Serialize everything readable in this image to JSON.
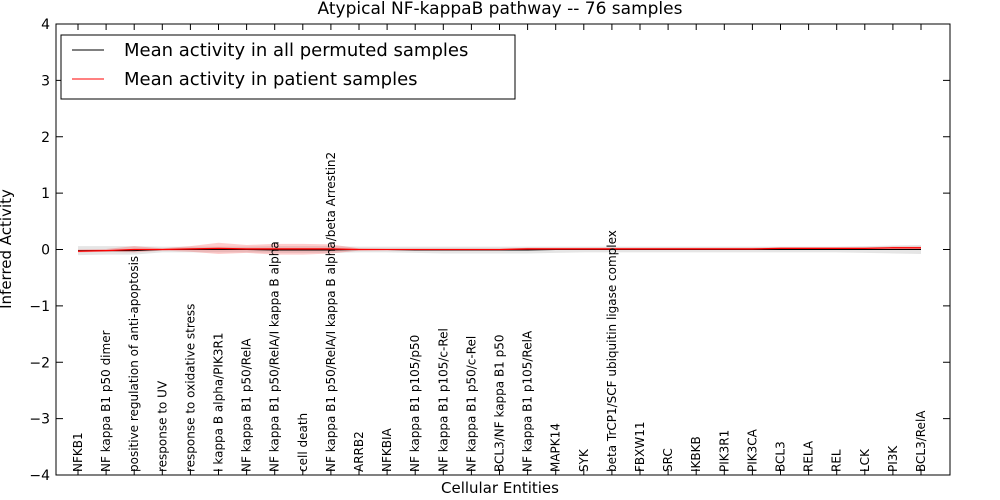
{
  "chart_data": {
    "type": "line",
    "title": "Atypical NF-kappaB pathway -- 76 samples",
    "xlabel": "Cellular Entities",
    "ylabel": "Inferred Activity",
    "ylim": [
      -4,
      4
    ],
    "yticks": [
      -4,
      -3,
      -2,
      -1,
      0,
      1,
      2,
      3,
      4
    ],
    "grid": false,
    "legend_position": "top-left",
    "categories": [
      "NFKB1",
      "NF kappa B1 p50 dimer",
      "positive regulation of anti-apoptosis",
      "response to UV",
      "response to oxidative stress",
      "I kappa B alpha/PIK3R1",
      "NF kappa B1 p50/RelA",
      "NF kappa B1 p50/RelA/I kappa B alpha",
      "cell death",
      "NF kappa B1 p50/RelA/I kappa B alpha/beta Arrestin2",
      "ARRB2",
      "NFKBIA",
      "NF kappa B1 p105/p50",
      "NF kappa B1 p105/c-Rel",
      "NF kappa B1 p50/c-Rel",
      "BCL3/NF kappa B1 p50",
      "NF kappa B1 p105/RelA",
      "MAPK14",
      "SYK",
      "beta TrCP1/SCF ubiquitin ligase complex",
      "FBXW11",
      "SRC",
      "IKBKB",
      "PIK3R1",
      "PIK3CA",
      "BCL3",
      "RELA",
      "REL",
      "LCK",
      "PI3K",
      "BCL3/RelA"
    ],
    "series": [
      {
        "name": "Mean activity in all permuted samples",
        "color": "#000000",
        "values": [
          -0.02,
          -0.02,
          -0.02,
          0.0,
          0.0,
          0.0,
          0.0,
          -0.01,
          -0.01,
          -0.01,
          0.0,
          0.0,
          -0.01,
          -0.01,
          -0.01,
          -0.01,
          -0.01,
          0.0,
          0.0,
          0.0,
          0.0,
          0.0,
          0.0,
          0.0,
          0.0,
          0.0,
          0.0,
          0.0,
          0.0,
          0.0,
          0.0
        ],
        "band_lower": [
          -0.1,
          -0.09,
          -0.09,
          -0.05,
          -0.05,
          -0.05,
          -0.05,
          -0.06,
          -0.06,
          -0.06,
          -0.05,
          -0.05,
          -0.06,
          -0.07,
          -0.07,
          -0.07,
          -0.07,
          -0.06,
          -0.05,
          -0.05,
          -0.05,
          -0.05,
          -0.05,
          -0.05,
          -0.05,
          -0.05,
          -0.05,
          -0.05,
          -0.06,
          -0.07,
          -0.08
        ],
        "band_upper": [
          0.06,
          0.06,
          0.06,
          0.05,
          0.05,
          0.05,
          0.05,
          0.06,
          0.06,
          0.06,
          0.05,
          0.05,
          0.05,
          0.05,
          0.05,
          0.05,
          0.05,
          0.05,
          0.05,
          0.05,
          0.05,
          0.05,
          0.05,
          0.05,
          0.05,
          0.05,
          0.05,
          0.05,
          0.06,
          0.07,
          0.08
        ]
      },
      {
        "name": "Mean activity in patient samples",
        "color": "#ff0000",
        "values": [
          -0.03,
          -0.02,
          0.0,
          0.0,
          0.01,
          0.02,
          0.01,
          0.01,
          0.01,
          0.01,
          0.0,
          0.0,
          0.0,
          0.0,
          0.0,
          0.0,
          0.01,
          0.01,
          0.01,
          0.01,
          0.01,
          0.01,
          0.01,
          0.01,
          0.01,
          0.02,
          0.02,
          0.02,
          0.02,
          0.03,
          0.03
        ],
        "band_lower": [
          -0.05,
          -0.04,
          -0.05,
          -0.02,
          -0.04,
          -0.08,
          -0.06,
          -0.09,
          -0.09,
          -0.07,
          -0.02,
          -0.01,
          -0.01,
          -0.01,
          -0.01,
          -0.01,
          -0.01,
          0.0,
          0.0,
          0.0,
          0.0,
          0.0,
          0.0,
          0.0,
          0.0,
          0.0,
          0.0,
          0.0,
          0.0,
          0.01,
          0.01
        ],
        "band_upper": [
          0.0,
          0.01,
          0.06,
          0.02,
          0.06,
          0.12,
          0.08,
          0.1,
          0.1,
          0.09,
          0.02,
          0.01,
          0.01,
          0.01,
          0.01,
          0.01,
          0.03,
          0.03,
          0.03,
          0.03,
          0.03,
          0.03,
          0.03,
          0.03,
          0.03,
          0.04,
          0.04,
          0.04,
          0.04,
          0.05,
          0.05
        ]
      }
    ]
  }
}
